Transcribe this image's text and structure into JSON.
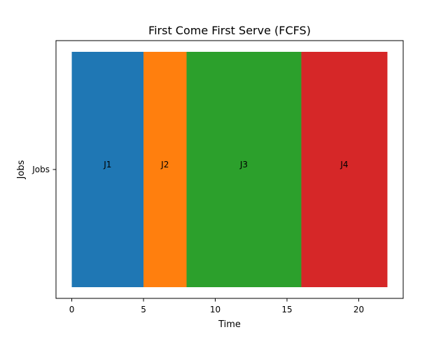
{
  "chart_data": {
    "type": "bar",
    "orientation": "horizontal-stacked",
    "title": "First Come First Serve (FCFS)",
    "xlabel": "Time",
    "ylabel": "Jobs",
    "categories": [
      "Jobs"
    ],
    "xlim": [
      -1.1,
      23.1
    ],
    "xticks": [
      0,
      5,
      10,
      15,
      20
    ],
    "grid": false,
    "series": [
      {
        "name": "J1",
        "start": 0,
        "end": 5,
        "color": "#1f77b4"
      },
      {
        "name": "J2",
        "start": 5,
        "end": 8,
        "color": "#ff7f0e"
      },
      {
        "name": "J3",
        "start": 8,
        "end": 16,
        "color": "#2ca02c"
      },
      {
        "name": "J4",
        "start": 16,
        "end": 22,
        "color": "#d62728"
      }
    ]
  }
}
